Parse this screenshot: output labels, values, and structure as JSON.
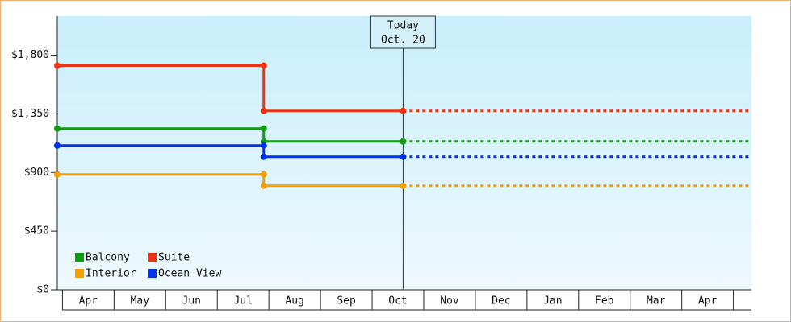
{
  "chart_data": {
    "type": "step-line",
    "months": [
      "Apr",
      "May",
      "Jun",
      "Jul",
      "Aug",
      "Sep",
      "Oct",
      "Nov",
      "Dec",
      "Jan",
      "Feb",
      "Mar",
      "Apr"
    ],
    "xlim": [
      -0.1,
      13.35
    ],
    "ylim": [
      0,
      2100
    ],
    "yticks": [
      {
        "value": 0,
        "label": "$0"
      },
      {
        "value": 450,
        "label": "$450"
      },
      {
        "value": 900,
        "label": "$900"
      },
      {
        "value": 1350,
        "label": "$1,350"
      },
      {
        "value": 1800,
        "label": "$1,800"
      }
    ],
    "today": {
      "title": "Today",
      "date": "Oct. 20",
      "x": 6.6
    },
    "series": [
      {
        "name": "Balcony",
        "color": "#119911",
        "x": [
          -0.1,
          3.9,
          3.9,
          6.6
        ],
        "values": [
          1237,
          1237,
          1138,
          1138
        ]
      },
      {
        "name": "Suite",
        "color": "#ee3311",
        "x": [
          -0.1,
          3.9,
          3.9,
          6.6
        ],
        "values": [
          1720,
          1720,
          1373,
          1373
        ]
      },
      {
        "name": "Interior",
        "color": "#f5a000",
        "x": [
          -0.1,
          3.9,
          3.9,
          6.6
        ],
        "values": [
          885,
          885,
          798,
          798
        ]
      },
      {
        "name": "Ocean View",
        "color": "#0033ee",
        "x": [
          -0.1,
          3.9,
          3.9,
          6.6
        ],
        "values": [
          1107,
          1107,
          1021,
          1021
        ]
      }
    ]
  }
}
